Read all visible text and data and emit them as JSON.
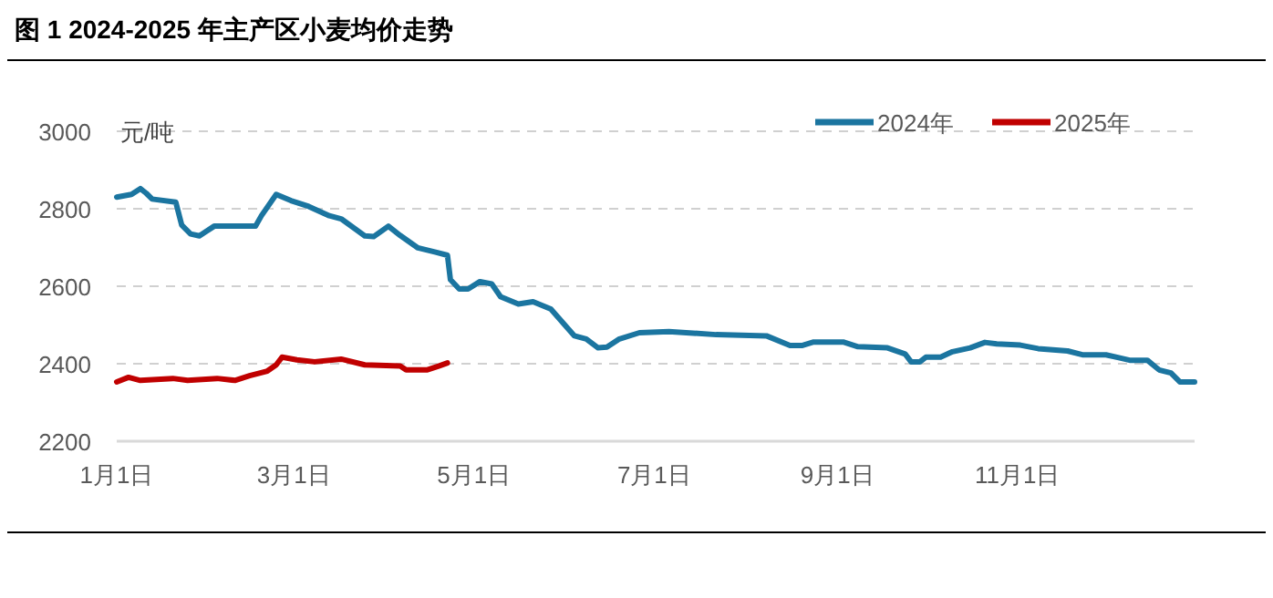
{
  "chart_data": {
    "type": "line",
    "title": "图 1 2024-2025 年主产区小麦均价走势",
    "ylabel": "元/吨",
    "xlim": [
      "--01-01",
      "--12-31"
    ],
    "ylim": [
      2200,
      3000
    ],
    "yticks": [
      2200,
      2400,
      2600,
      2800,
      3000
    ],
    "xticks": [
      {
        "value": "--01-01",
        "label": "1月1日"
      },
      {
        "value": "--03-01",
        "label": "3月1日"
      },
      {
        "value": "--05-01",
        "label": "5月1日"
      },
      {
        "value": "--07-01",
        "label": "7月1日"
      },
      {
        "value": "--09-01",
        "label": "9月1日"
      },
      {
        "value": "--11-01",
        "label": "11月1日"
      }
    ],
    "grid": "y",
    "legend": "top right",
    "marker": "none",
    "line_style": "solid",
    "series": [
      {
        "name": "2024年",
        "color": "#1b75a0",
        "x": [
          "--01-01",
          "--01-06",
          "--01-09",
          "--01-11",
          "--01-13",
          "--01-21",
          "--01-23",
          "--01-26",
          "--01-29",
          "--02-03",
          "--02-17",
          "--02-19",
          "--02-24",
          "--02-29",
          "--03-06",
          "--03-13",
          "--03-17",
          "--03-25",
          "--03-28",
          "--04-02",
          "--04-06",
          "--04-12",
          "--04-18",
          "--04-22",
          "--04-23",
          "--04-26",
          "--04-29",
          "--05-03",
          "--05-07",
          "--05-10",
          "--05-16",
          "--05-21",
          "--05-27",
          "--06-04",
          "--06-08",
          "--06-12",
          "--06-15",
          "--06-19",
          "--06-26",
          "--07-06",
          "--07-22",
          "--08-08",
          "--08-16",
          "--08-20",
          "--08-24",
          "--09-03",
          "--09-08",
          "--09-18",
          "--09-24",
          "--09-26",
          "--09-29",
          "--10-01",
          "--10-06",
          "--10-10",
          "--10-16",
          "--10-21",
          "--10-25",
          "--11-02",
          "--11-08",
          "--11-18",
          "--11-23",
          "--12-01",
          "--12-05",
          "--12-09",
          "--12-15",
          "--12-19",
          "--12-23",
          "--12-26",
          "--12-31"
        ],
        "values": [
          2830,
          2837,
          2852,
          2840,
          2825,
          2817,
          2758,
          2735,
          2730,
          2755,
          2755,
          2782,
          2837,
          2821,
          2806,
          2782,
          2774,
          2730,
          2728,
          2755,
          2731,
          2699,
          2688,
          2680,
          2617,
          2593,
          2593,
          2612,
          2606,
          2573,
          2554,
          2560,
          2541,
          2472,
          2464,
          2441,
          2443,
          2463,
          2480,
          2483,
          2475,
          2472,
          2447,
          2447,
          2456,
          2456,
          2444,
          2441,
          2425,
          2405,
          2405,
          2417,
          2417,
          2431,
          2441,
          2455,
          2451,
          2448,
          2439,
          2433,
          2423,
          2423,
          2416,
          2409,
          2409,
          2384,
          2376,
          2353,
          2353
        ]
      },
      {
        "name": "2025年",
        "color": "#c00000",
        "x": [
          "--01-01",
          "--01-05",
          "--01-09",
          "--01-20",
          "--01-25",
          "--02-04",
          "--02-10",
          "--02-15",
          "--02-21",
          "--02-24",
          "--02-26",
          "--03-02",
          "--03-08",
          "--03-17",
          "--03-25",
          "--04-06",
          "--04-08",
          "--04-15",
          "--04-19",
          "--04-22"
        ],
        "values": [
          2353,
          2365,
          2357,
          2362,
          2357,
          2362,
          2357,
          2369,
          2381,
          2397,
          2417,
          2410,
          2405,
          2412,
          2397,
          2394,
          2384,
          2384,
          2394,
          2402
        ]
      }
    ]
  }
}
